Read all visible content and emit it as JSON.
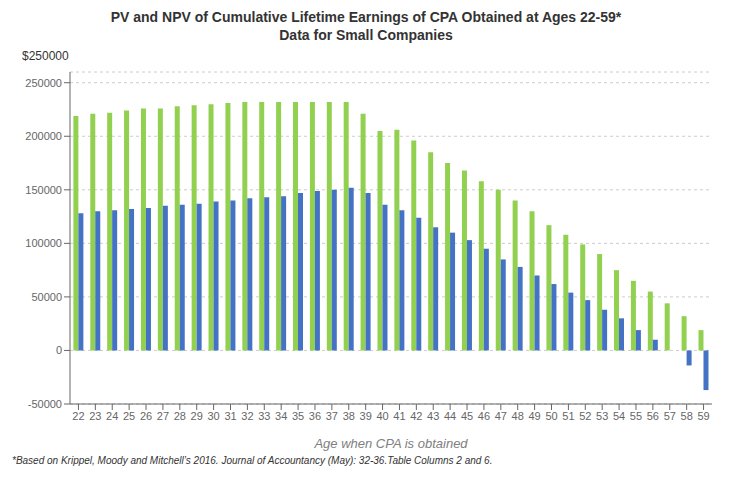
{
  "chart_data": {
    "type": "bar",
    "title": "PV and NPV of Cumulative Lifetime Earnings of CPA Obtained at Ages 22-59*",
    "subtitle": "Data for Small Companies",
    "xlabel": "Age when CPA is obtained",
    "annotations": [
      "$250000"
    ],
    "footnote": "*Based on Krippel, Moody and Mitchell’s 2016. Journal of Accountancy (May): 32-36.Table Columns 2 and 6.",
    "categories": [
      "22",
      "23",
      "24",
      "25",
      "26",
      "27",
      "28",
      "29",
      "30",
      "31",
      "32",
      "33",
      "34",
      "35",
      "36",
      "37",
      "38",
      "39",
      "40",
      "41",
      "42",
      "43",
      "44",
      "45",
      "46",
      "47",
      "48",
      "49",
      "50",
      "51",
      "52",
      "53",
      "54",
      "55",
      "56",
      "57",
      "58",
      "59"
    ],
    "series": [
      {
        "color": "#92D050",
        "values": [
          219000,
          221000,
          222000,
          224000,
          226000,
          226000,
          228000,
          229000,
          230000,
          231000,
          232000,
          232000,
          232000,
          232000,
          232000,
          232000,
          232000,
          221000,
          205000,
          206000,
          196000,
          185000,
          175000,
          168000,
          158000,
          150000,
          140000,
          130000,
          117000,
          108000,
          99000,
          90000,
          75000,
          65000,
          55000,
          44000,
          32000,
          19000
        ]
      },
      {
        "color": "#4472C4",
        "values": [
          128000,
          130000,
          131000,
          132000,
          133000,
          135000,
          136000,
          137000,
          139000,
          140000,
          142000,
          143000,
          144000,
          147000,
          149000,
          150000,
          152000,
          147000,
          136000,
          131000,
          124000,
          115000,
          110000,
          103000,
          95000,
          85000,
          78000,
          70000,
          62000,
          54000,
          47000,
          38000,
          30000,
          19000,
          10000,
          0,
          -14000,
          -37000
        ]
      }
    ],
    "ylim": [
      -50000,
      260000
    ],
    "yticks": [
      -50000,
      0,
      50000,
      100000,
      150000,
      200000,
      250000
    ],
    "grid": true
  }
}
